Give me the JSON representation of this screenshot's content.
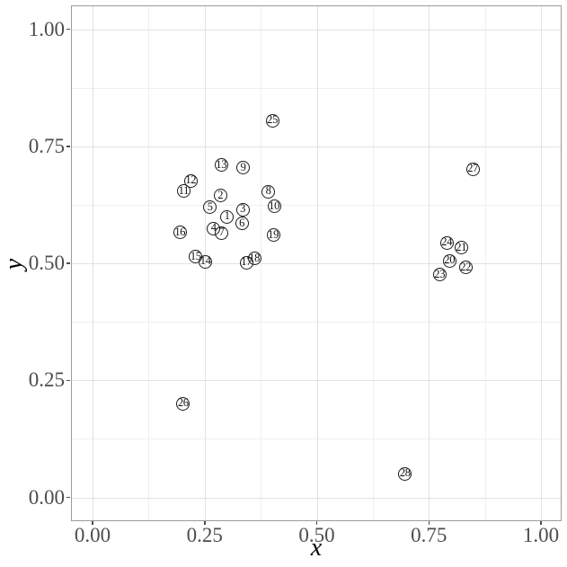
{
  "chart_data": {
    "type": "scatter",
    "xlabel": "x",
    "ylabel": "y",
    "xlim": [
      0,
      1
    ],
    "ylim": [
      0,
      1
    ],
    "grid": "major and minor, light gray on white panel",
    "legend": "none",
    "point_style": "open black circle with centered number label",
    "x_tick_values": [
      0,
      0.25,
      0.5,
      0.75,
      1
    ],
    "x_tick_labels": [
      "0.00",
      "0.25",
      "0.50",
      "0.75",
      "1.00"
    ],
    "y_tick_values": [
      0,
      0.25,
      0.5,
      0.75,
      1
    ],
    "y_tick_labels": [
      "0.00",
      "0.25",
      "0.50",
      "0.75",
      "1.00"
    ],
    "x_minor_values": [
      0.125,
      0.375,
      0.625,
      0.875
    ],
    "y_minor_values": [
      0.125,
      0.375,
      0.625,
      0.875
    ],
    "points": [
      {
        "label": "1",
        "x": 0.3,
        "y": 0.6
      },
      {
        "label": "2",
        "x": 0.285,
        "y": 0.645
      },
      {
        "label": "3",
        "x": 0.335,
        "y": 0.615
      },
      {
        "label": "4",
        "x": 0.27,
        "y": 0.575
      },
      {
        "label": "5",
        "x": 0.262,
        "y": 0.62
      },
      {
        "label": "6",
        "x": 0.333,
        "y": 0.585
      },
      {
        "label": "7",
        "x": 0.288,
        "y": 0.565
      },
      {
        "label": "8",
        "x": 0.392,
        "y": 0.653
      },
      {
        "label": "9",
        "x": 0.336,
        "y": 0.704
      },
      {
        "label": "10",
        "x": 0.405,
        "y": 0.622
      },
      {
        "label": "11",
        "x": 0.203,
        "y": 0.654
      },
      {
        "label": "12",
        "x": 0.219,
        "y": 0.676
      },
      {
        "label": "13",
        "x": 0.287,
        "y": 0.71
      },
      {
        "label": "14",
        "x": 0.252,
        "y": 0.504
      },
      {
        "label": "15",
        "x": 0.23,
        "y": 0.514
      },
      {
        "label": "16",
        "x": 0.195,
        "y": 0.566
      },
      {
        "label": "17",
        "x": 0.343,
        "y": 0.502
      },
      {
        "label": "18",
        "x": 0.361,
        "y": 0.51
      },
      {
        "label": "19",
        "x": 0.403,
        "y": 0.56
      },
      {
        "label": "20",
        "x": 0.796,
        "y": 0.505
      },
      {
        "label": "21",
        "x": 0.822,
        "y": 0.533
      },
      {
        "label": "22",
        "x": 0.832,
        "y": 0.491
      },
      {
        "label": "23",
        "x": 0.774,
        "y": 0.476
      },
      {
        "label": "24",
        "x": 0.79,
        "y": 0.544
      },
      {
        "label": "25",
        "x": 0.401,
        "y": 0.805
      },
      {
        "label": "26",
        "x": 0.202,
        "y": 0.2
      },
      {
        "label": "27",
        "x": 0.848,
        "y": 0.701
      },
      {
        "label": "28",
        "x": 0.697,
        "y": 0.05
      }
    ]
  },
  "colors": {
    "background": "#ffffff",
    "panel_border": "#9b9b9b",
    "grid_major": "#e2e2e2",
    "grid_minor": "#efefef",
    "tick_label": "#4d4d4d",
    "tick_mark": "#4d4d4d",
    "axis_title": "#000000",
    "point_stroke": "#1a1a1a",
    "point_label": "#111111"
  }
}
